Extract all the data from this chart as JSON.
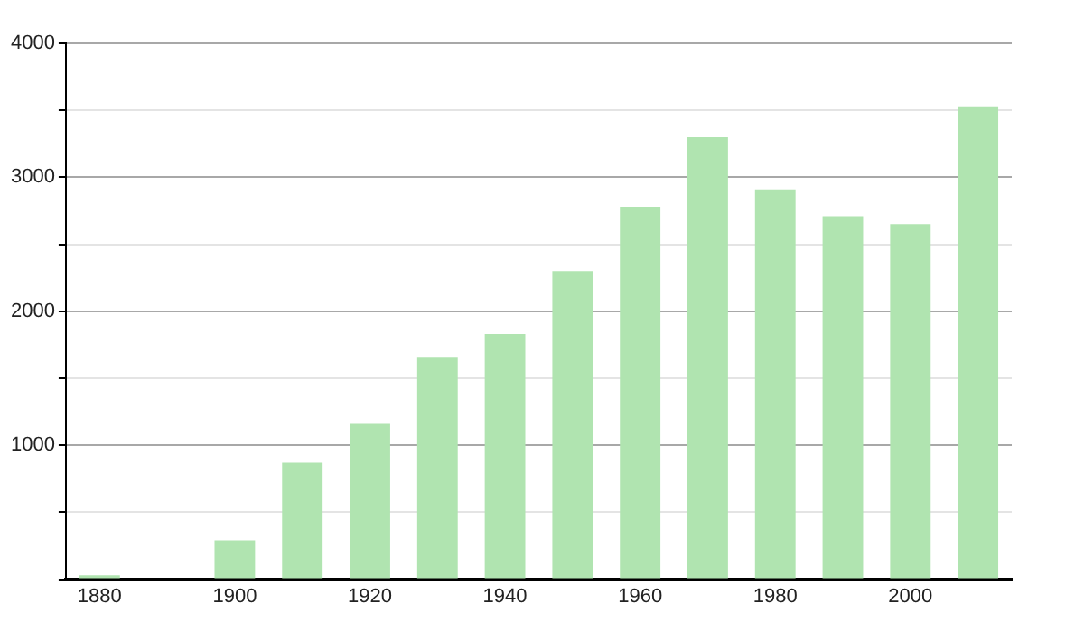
{
  "chart_data": {
    "type": "bar",
    "categories": [
      "1880",
      null,
      "1900",
      null,
      "1920",
      null,
      "1940",
      null,
      "1960",
      null,
      "1980",
      null,
      "2000",
      null
    ],
    "values": [
      30,
      null,
      290,
      870,
      1160,
      1660,
      1830,
      2300,
      2780,
      3300,
      2910,
      2710,
      2650,
      3530
    ],
    "color": "#b0e4b0",
    "ylim": [
      0,
      4000
    ],
    "yticks": [
      {
        "value": 0,
        "label": null
      },
      {
        "value": 500,
        "label": null
      },
      1000,
      {
        "value": 1500,
        "label": null
      },
      2000,
      {
        "value": 2500,
        "label": null
      },
      3000,
      {
        "value": 3500,
        "label": null
      },
      4000
    ],
    "grid": "y"
  }
}
